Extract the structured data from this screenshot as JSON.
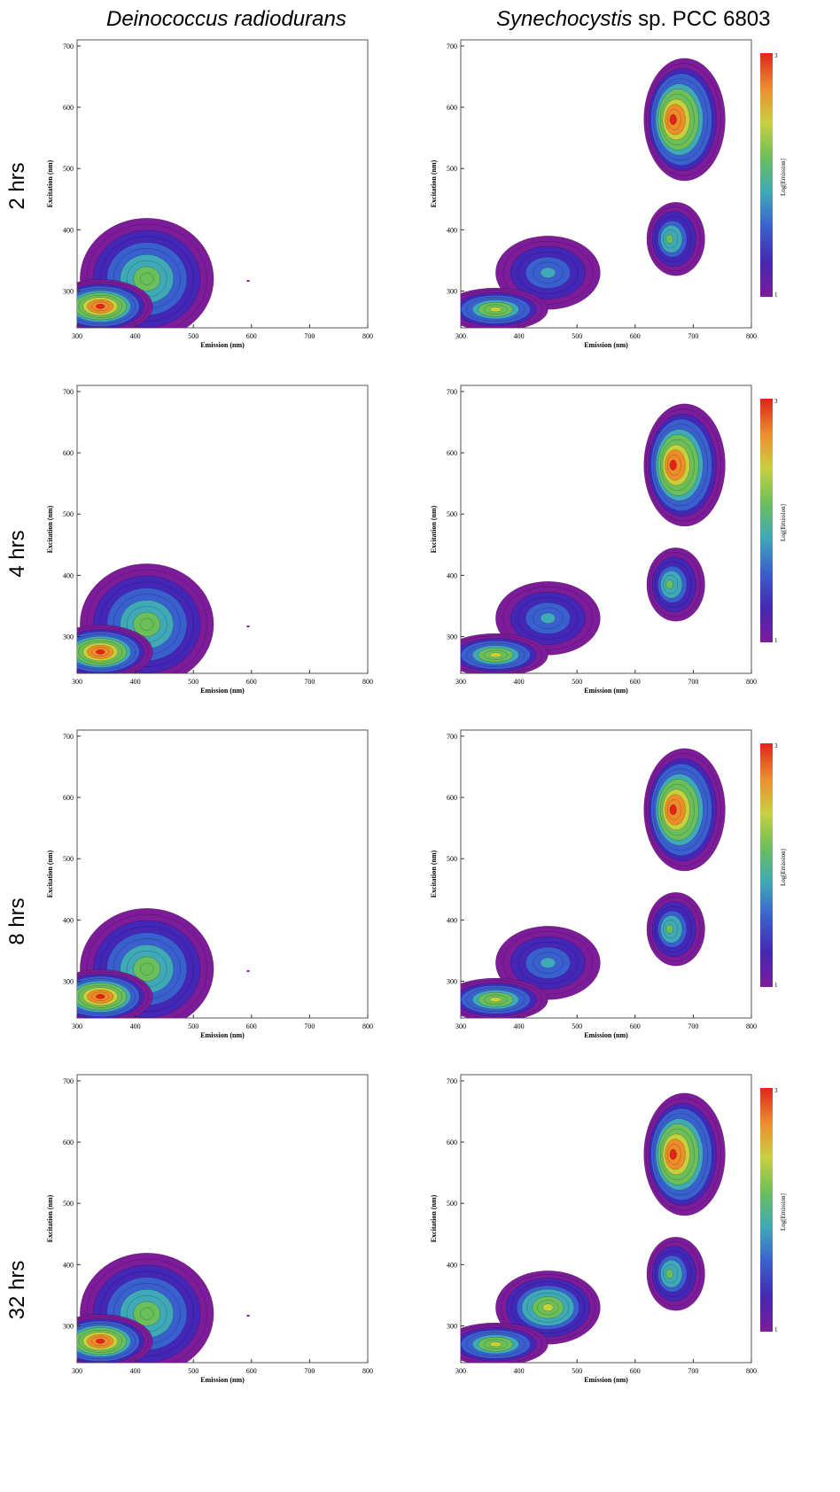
{
  "headers": {
    "left_organism": "Deinococcus radiodurans",
    "right_organism_italic": "Synechocystis",
    "right_organism_rest": " sp. PCC 6803"
  },
  "rows": [
    "2 hrs",
    "4 hrs",
    "8 hrs",
    "32 hrs"
  ],
  "colors": {
    "red": "#e2231a",
    "orange": "#ef8c2a",
    "yellow": "#c8d13b",
    "green": "#6bbf5a",
    "cyan": "#3fa9b8",
    "blue": "#3a5fcf",
    "indigo": "#4527b8",
    "purple": "#7d1c99"
  },
  "chart_data": [
    {
      "type": "heatmap",
      "panel": "Deinococcus radiodurans, 2 hrs",
      "xlabel": "Emission (nm)",
      "ylabel": "Excitation (nm)",
      "xlim": [
        300,
        800
      ],
      "ylim": [
        240,
        710
      ],
      "xticks": [
        300,
        400,
        500,
        600,
        700,
        800
      ],
      "yticks": [
        300,
        400,
        500,
        600,
        700
      ],
      "peaks": [
        {
          "x": 345,
          "y": 280,
          "level": "max"
        }
      ]
    },
    {
      "type": "heatmap",
      "panel": "Synechocystis sp. PCC 6803, 2 hrs",
      "xlabel": "Emission (nm)",
      "ylabel": "Excitation (nm)",
      "colorbar_label": "Log[Emission]",
      "colorbar_ticks": [
        "1",
        "3"
      ],
      "xlim": [
        300,
        800
      ],
      "ylim": [
        240,
        710
      ],
      "xticks": [
        300,
        400,
        500,
        600,
        700,
        800
      ],
      "yticks": [
        300,
        400,
        500,
        600,
        700
      ],
      "peaks": [
        {
          "x": 660,
          "y": 615,
          "level": "max"
        },
        {
          "x": 665,
          "y": 390,
          "level": "mid"
        },
        {
          "x": 450,
          "y": 340,
          "level": "low"
        },
        {
          "x": 340,
          "y": 280,
          "level": "mid"
        }
      ]
    },
    {
      "type": "heatmap",
      "panel": "Deinococcus radiodurans, 4 hrs",
      "xlabel": "Emission (nm)",
      "ylabel": "Excitation (nm)",
      "xlim": [
        300,
        800
      ],
      "ylim": [
        240,
        710
      ],
      "xticks": [
        300,
        400,
        500,
        600,
        700,
        800
      ],
      "yticks": [
        300,
        400,
        500,
        600,
        700
      ],
      "peaks": [
        {
          "x": 345,
          "y": 280,
          "level": "max"
        }
      ]
    },
    {
      "type": "heatmap",
      "panel": "Synechocystis sp. PCC 6803, 4 hrs",
      "xlabel": "Emission (nm)",
      "ylabel": "Excitation (nm)",
      "colorbar_label": "Log[Emission]",
      "colorbar_ticks": [
        "1",
        "3"
      ],
      "xlim": [
        300,
        800
      ],
      "ylim": [
        240,
        710
      ],
      "xticks": [
        300,
        400,
        500,
        600,
        700,
        800
      ],
      "yticks": [
        300,
        400,
        500,
        600,
        700
      ],
      "peaks": [
        {
          "x": 660,
          "y": 615,
          "level": "max"
        },
        {
          "x": 665,
          "y": 390,
          "level": "mid"
        },
        {
          "x": 450,
          "y": 340,
          "level": "low"
        },
        {
          "x": 340,
          "y": 280,
          "level": "mid"
        }
      ]
    },
    {
      "type": "heatmap",
      "panel": "Deinococcus radiodurans, 8 hrs",
      "xlabel": "Emission (nm)",
      "ylabel": "Excitation (nm)",
      "xlim": [
        300,
        800
      ],
      "ylim": [
        240,
        710
      ],
      "xticks": [
        300,
        400,
        500,
        600,
        700,
        800
      ],
      "yticks": [
        300,
        400,
        500,
        600,
        700
      ],
      "peaks": [
        {
          "x": 345,
          "y": 280,
          "level": "max"
        }
      ]
    },
    {
      "type": "heatmap",
      "panel": "Synechocystis sp. PCC 6803, 8 hrs",
      "xlabel": "Emission (nm)",
      "ylabel": "Excitation (nm)",
      "colorbar_label": "Log[Emission]",
      "colorbar_ticks": [
        "1",
        "3"
      ],
      "xlim": [
        300,
        800
      ],
      "ylim": [
        240,
        710
      ],
      "xticks": [
        300,
        400,
        500,
        600,
        700,
        800
      ],
      "yticks": [
        300,
        400,
        500,
        600,
        700
      ],
      "peaks": [
        {
          "x": 660,
          "y": 615,
          "level": "max"
        },
        {
          "x": 665,
          "y": 390,
          "level": "mid"
        },
        {
          "x": 450,
          "y": 340,
          "level": "low"
        },
        {
          "x": 340,
          "y": 280,
          "level": "mid"
        }
      ]
    },
    {
      "type": "heatmap",
      "panel": "Deinococcus radiodurans, 32 hrs",
      "xlabel": "Emission (nm)",
      "ylabel": "Excitation (nm)",
      "xlim": [
        300,
        800
      ],
      "ylim": [
        240,
        710
      ],
      "xticks": [
        300,
        400,
        500,
        600,
        700,
        800
      ],
      "yticks": [
        300,
        400,
        500,
        600,
        700
      ],
      "peaks": [
        {
          "x": 345,
          "y": 280,
          "level": "max"
        }
      ]
    },
    {
      "type": "heatmap",
      "panel": "Synechocystis sp. PCC 6803, 32 hrs",
      "xlabel": "Emission (nm)",
      "ylabel": "Excitation (nm)",
      "colorbar_label": "Log[Emission]",
      "colorbar_ticks": [
        "1",
        "3"
      ],
      "xlim": [
        300,
        800
      ],
      "ylim": [
        240,
        710
      ],
      "xticks": [
        300,
        400,
        500,
        600,
        700,
        800
      ],
      "yticks": [
        300,
        400,
        500,
        600,
        700
      ],
      "peaks": [
        {
          "x": 660,
          "y": 615,
          "level": "max"
        },
        {
          "x": 665,
          "y": 390,
          "level": "mid"
        },
        {
          "x": 450,
          "y": 350,
          "level": "mid"
        },
        {
          "x": 450,
          "y": 265,
          "level": "high"
        }
      ]
    }
  ]
}
